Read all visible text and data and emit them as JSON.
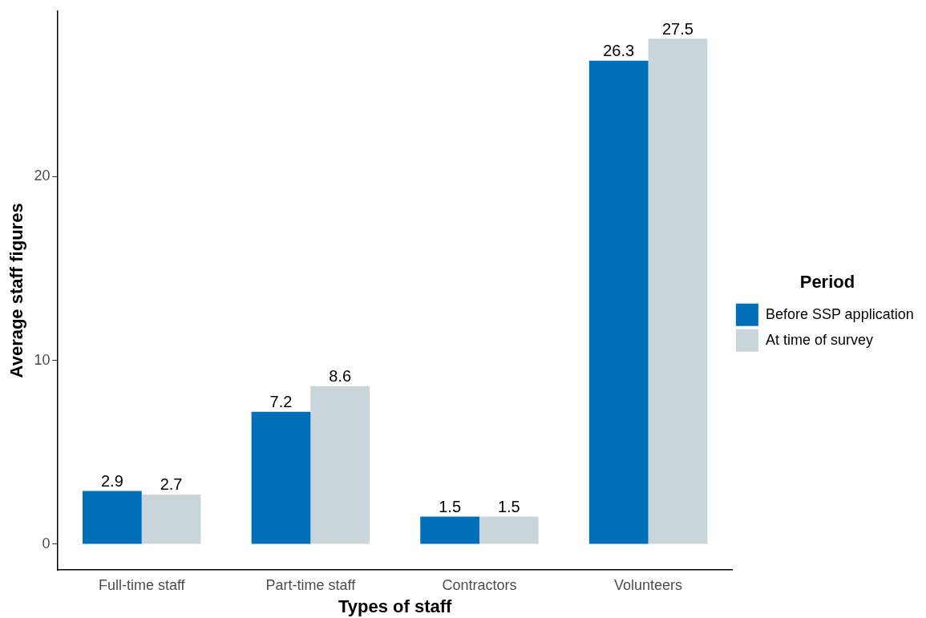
{
  "chart_data": {
    "type": "bar",
    "xlabel": "Types of staff",
    "ylabel": "Average staff figures",
    "legend_title": "Period",
    "categories": [
      "Full-time staff",
      "Part-time staff",
      "Contractors",
      "Volunteers"
    ],
    "series": [
      {
        "name": "Before SSP application",
        "color": "#006eb8",
        "values": [
          2.9,
          7.2,
          1.5,
          26.3
        ]
      },
      {
        "name": "At time of survey",
        "color": "#c9d5da",
        "values": [
          2.7,
          8.6,
          1.5,
          27.5
        ]
      }
    ],
    "ylim": [
      -1.4,
      29
    ],
    "yticks": [
      0,
      10,
      20
    ],
    "grid": false,
    "legend": "right",
    "data_labels": true
  }
}
